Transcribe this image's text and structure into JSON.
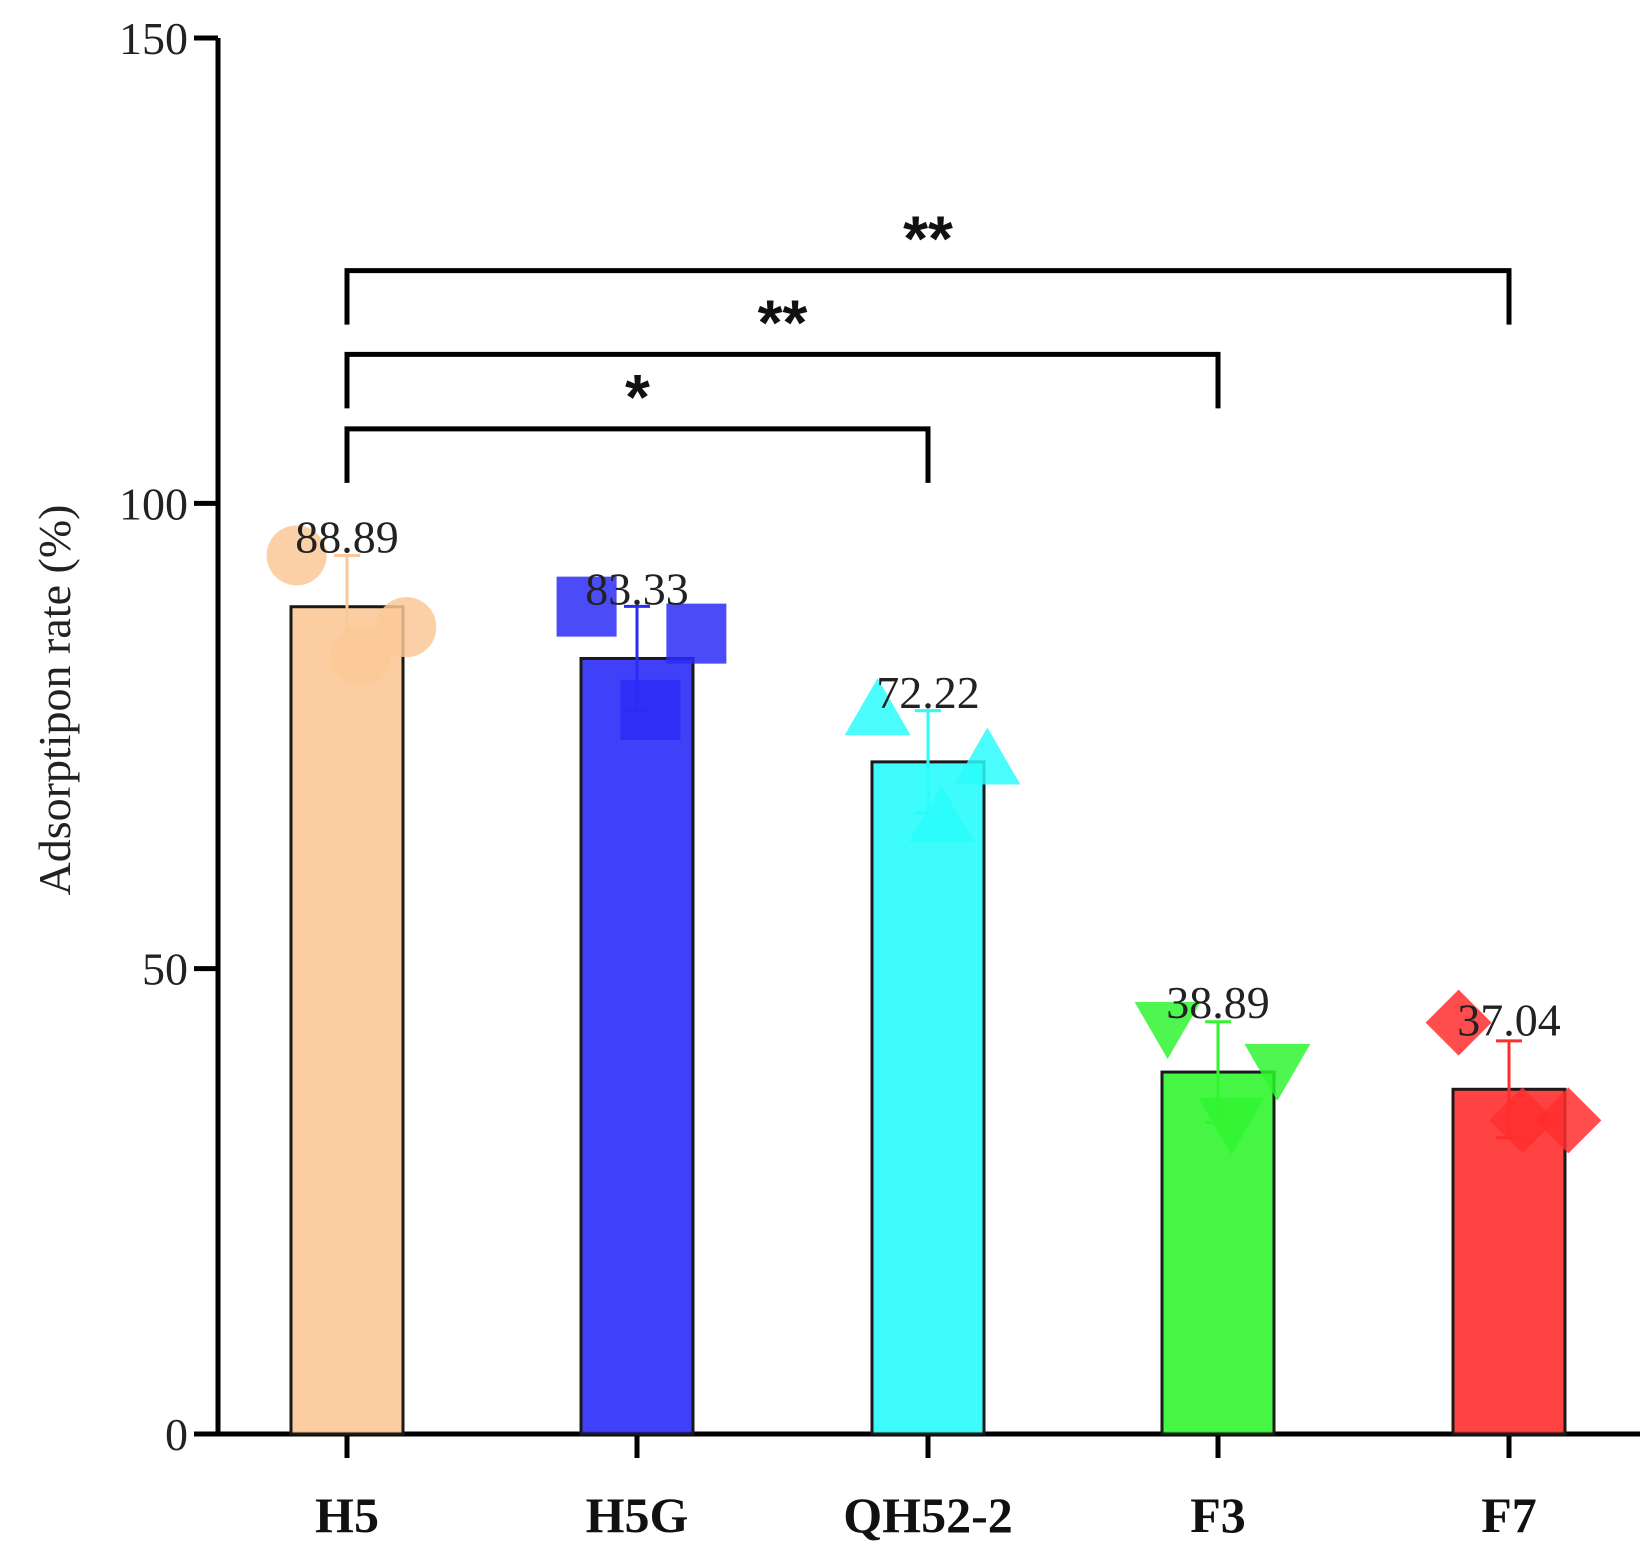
{
  "chart_data": {
    "type": "bar",
    "title": "",
    "xlabel": "",
    "ylabel": "Adsorptipon rate (%)",
    "ylim": [
      0,
      150
    ],
    "yticks": [
      0,
      50,
      100,
      150
    ],
    "categories": [
      "H5",
      "H5G",
      "QH52-2",
      "F3",
      "F7"
    ],
    "values": [
      88.89,
      83.33,
      72.22,
      38.89,
      37.04
    ],
    "value_labels": [
      "88.89",
      "83.33",
      "72.22",
      "38.89",
      "37.04"
    ],
    "errors": [
      5.5,
      5.6,
      5.5,
      5.4,
      5.2
    ],
    "points": [
      [
        94.4,
        86.7,
        83.6
      ],
      [
        88.9,
        86.0,
        77.8
      ],
      [
        77.5,
        72.2,
        66.0
      ],
      [
        44.0,
        39.5,
        33.7
      ],
      [
        44.2,
        33.7,
        33.7
      ]
    ],
    "markers": [
      "circle",
      "square",
      "triangle-up",
      "triangle-down",
      "diamond"
    ],
    "colors": [
      "#FCC896",
      "#2B2BF7",
      "#2AFCFC",
      "#31F531",
      "#FF2E2E"
    ],
    "bar_alpha": 0.9,
    "significance": [
      {
        "from": "H5",
        "to": "QH52-2",
        "label": "*",
        "y": 108
      },
      {
        "from": "H5",
        "to": "F3",
        "label": "**",
        "y": 116
      },
      {
        "from": "H5",
        "to": "F7",
        "label": "**",
        "y": 125
      }
    ]
  }
}
